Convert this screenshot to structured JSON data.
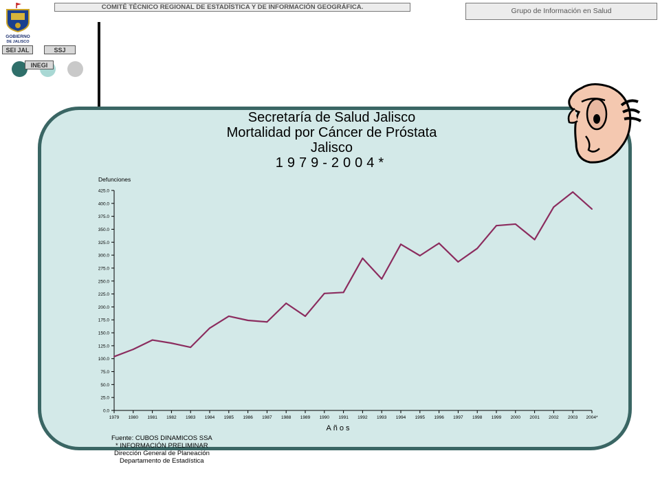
{
  "header": {
    "comite": "COMITÉ TÉCNICO REGIONAL DE ESTADÍSTICA Y DE INFORMACIÓN GEOGRÁFICA.",
    "grupo": "Grupo de Información en Salud"
  },
  "logo": {
    "line1": "GOBIERNO",
    "line2": "DE JALISCO"
  },
  "nav": {
    "sei_jal": "SEI JAL",
    "ssj": "SSJ",
    "inegi": "INEGI"
  },
  "title": {
    "line1": "Secretaría de Salud Jalisco",
    "line2": "Mortalidad por Cáncer de Próstata",
    "line3": "Jalisco",
    "line4": "1979-2004*"
  },
  "colors": {
    "line": "#8b2c5e",
    "panel": "#d3e9e8",
    "panel_border": "#3a6664"
  },
  "chart_data": {
    "type": "line",
    "ylabel": "Defunciones",
    "xlabel": "Años",
    "ylim": [
      0,
      425
    ],
    "ystep": 25,
    "categories": [
      "1979",
      "1980",
      "1981",
      "1982",
      "1983",
      "1984",
      "1985",
      "1986",
      "1987",
      "1988",
      "1989",
      "1990",
      "1991",
      "1992",
      "1993",
      "1994",
      "1995",
      "1996",
      "1997",
      "1998",
      "1999",
      "2000",
      "2001",
      "2002",
      "2003",
      "2004*"
    ],
    "values": [
      104,
      118,
      136,
      130,
      122,
      159,
      182,
      174,
      171,
      207,
      182,
      226,
      228,
      294,
      254,
      321,
      299,
      323,
      287,
      313,
      357,
      360,
      330,
      393,
      422,
      389
    ],
    "grid": false
  },
  "source": {
    "line1": "Fuente: CUBOS DINAMICOS SSA",
    "line2": "* INFORMACIÓN PRELIMINAR",
    "line3": "Dirección General de Planeación",
    "line4": "Departamento de Estadística"
  }
}
